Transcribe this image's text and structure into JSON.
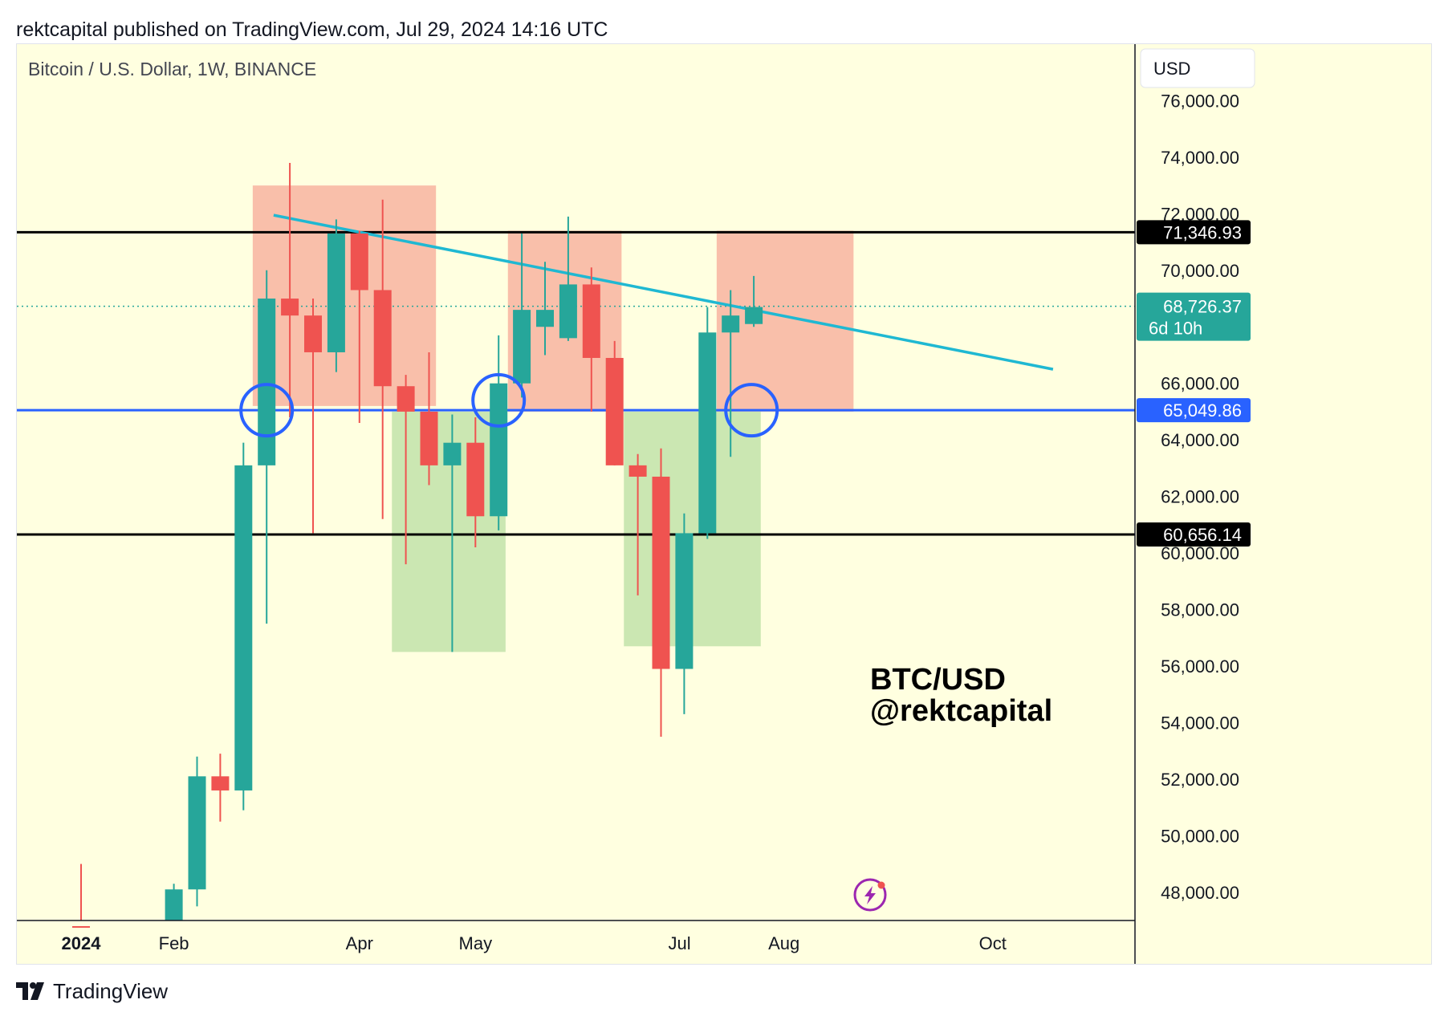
{
  "header": {
    "publish_line": "rektcapital published on TradingView.com, Jul 29, 2024 14:16 UTC"
  },
  "footer": {
    "brand": "TradingView",
    "logo_icon": "tradingview-logo-icon"
  },
  "colors": {
    "background": "#ffffe0",
    "up": "#26a69a",
    "down": "#ef5350",
    "resistance_zone": "#f8b8a4",
    "support_zone": "#c5e4ad",
    "trendline": "#1fb8d2",
    "support_line": "#2962ff",
    "level_line": "#000000",
    "circle": "#2962ff",
    "price_label": "#26a69a"
  },
  "chart_data": {
    "type": "candlestick",
    "symbol_title": "Bitcoin / U.S. Dollar, 1W, BINANCE",
    "currency_label": "USD",
    "watermark_lines": [
      "BTC/USD",
      "@rektcapital"
    ],
    "ylim": [
      47000,
      78000
    ],
    "y_ticks": [
      "76,000.00",
      "74,000.00",
      "72,000.00",
      "70,000.00",
      "66,000.00",
      "64,000.00",
      "62,000.00",
      "60,000.00",
      "58,000.00",
      "56,000.00",
      "54,000.00",
      "52,000.00",
      "50,000.00",
      "48,000.00"
    ],
    "y_tick_values": [
      76000,
      74000,
      72000,
      70000,
      66000,
      64000,
      62000,
      60000,
      58000,
      56000,
      54000,
      52000,
      50000,
      48000
    ],
    "x_labels": [
      {
        "label": "2024",
        "at": 0.0,
        "bold": true
      },
      {
        "label": "Feb",
        "at": 4.0,
        "bold": false
      },
      {
        "label": "Apr",
        "at": 12.0,
        "bold": false
      },
      {
        "label": "May",
        "at": 17.0,
        "bold": false
      },
      {
        "label": "Jul",
        "at": 25.8,
        "bold": false
      },
      {
        "label": "Aug",
        "at": 30.3,
        "bold": false
      },
      {
        "label": "Oct",
        "at": 39.3,
        "bold": false
      }
    ],
    "candles": [
      {
        "x": 0,
        "open": 46800,
        "high": 49000,
        "low": 46500,
        "close": 46700
      },
      {
        "x": 4,
        "open": 47000,
        "high": 48300,
        "low": 46800,
        "close": 48100
      },
      {
        "x": 5,
        "open": 48100,
        "high": 52800,
        "low": 47500,
        "close": 52100
      },
      {
        "x": 6,
        "open": 52100,
        "high": 52900,
        "low": 50500,
        "close": 51600
      },
      {
        "x": 7,
        "open": 51600,
        "high": 63900,
        "low": 50900,
        "close": 63100
      },
      {
        "x": 8,
        "open": 63100,
        "high": 70000,
        "low": 57500,
        "close": 69000
      },
      {
        "x": 9,
        "open": 69000,
        "high": 73800,
        "low": 64800,
        "close": 68400
      },
      {
        "x": 10,
        "open": 68400,
        "high": 69000,
        "low": 60700,
        "close": 67100
      },
      {
        "x": 11,
        "open": 67100,
        "high": 71800,
        "low": 66400,
        "close": 71300
      },
      {
        "x": 12,
        "open": 71300,
        "high": 71400,
        "low": 64600,
        "close": 69300
      },
      {
        "x": 13,
        "open": 69300,
        "high": 72500,
        "low": 61200,
        "close": 65900
      },
      {
        "x": 14,
        "open": 65900,
        "high": 66300,
        "low": 59600,
        "close": 65000
      },
      {
        "x": 15,
        "open": 65000,
        "high": 67100,
        "low": 62400,
        "close": 63100
      },
      {
        "x": 16,
        "open": 63100,
        "high": 64900,
        "low": 56500,
        "close": 63900
      },
      {
        "x": 17,
        "open": 63900,
        "high": 64800,
        "low": 60200,
        "close": 61300
      },
      {
        "x": 18,
        "open": 61300,
        "high": 67700,
        "low": 60800,
        "close": 66000
      },
      {
        "x": 19,
        "open": 66000,
        "high": 71300,
        "low": 65500,
        "close": 68600
      },
      {
        "x": 20,
        "open": 68000,
        "high": 70300,
        "low": 67000,
        "close": 68600
      },
      {
        "x": 21,
        "open": 67600,
        "high": 71900,
        "low": 67500,
        "close": 69500
      },
      {
        "x": 22,
        "open": 69500,
        "high": 70100,
        "low": 65000,
        "close": 66900
      },
      {
        "x": 23,
        "open": 66900,
        "high": 67500,
        "low": 63100,
        "close": 63100
      },
      {
        "x": 24,
        "open": 63100,
        "high": 63500,
        "low": 58500,
        "close": 62700
      },
      {
        "x": 25,
        "open": 62700,
        "high": 63700,
        "low": 53500,
        "close": 55900
      },
      {
        "x": 26,
        "open": 55900,
        "high": 61400,
        "low": 54300,
        "close": 60700
      },
      {
        "x": 27,
        "open": 60700,
        "high": 68700,
        "low": 60500,
        "close": 67800
      },
      {
        "x": 28,
        "open": 67800,
        "high": 69300,
        "low": 63400,
        "close": 68400
      },
      {
        "x": 29,
        "open": 68100,
        "high": 69800,
        "low": 68000,
        "close": 68700
      }
    ],
    "zones": [
      {
        "kind": "resistance",
        "x0": 7.4,
        "x1": 15.3,
        "y0": 65200,
        "y1": 73000
      },
      {
        "kind": "resistance",
        "x0": 18.4,
        "x1": 23.3,
        "y0": 65000,
        "y1": 71400
      },
      {
        "kind": "resistance",
        "x0": 27.4,
        "x1": 33.3,
        "y0": 65000,
        "y1": 71400
      },
      {
        "kind": "support",
        "x0": 13.4,
        "x1": 18.3,
        "y0": 56500,
        "y1": 65000
      },
      {
        "kind": "support",
        "x0": 23.4,
        "x1": 29.3,
        "y0": 56700,
        "y1": 65000
      }
    ],
    "trendline": {
      "x0": 8.3,
      "y0": 71950,
      "x1": 41.9,
      "y1": 66500
    },
    "levels": [
      {
        "value": 71346.93,
        "label": "71,346.93",
        "color": "#000000",
        "style": "solid"
      },
      {
        "value": 65049.86,
        "label": "65,049.86",
        "color": "#2962ff",
        "style": "solid"
      },
      {
        "value": 60656.14,
        "label": "60,656.14",
        "color": "#000000",
        "style": "solid"
      }
    ],
    "last_price": {
      "value": 68726.37,
      "label": "68,726.37",
      "countdown": "6d 10h"
    },
    "circles": [
      {
        "x": 8.0,
        "y": 65049.86
      },
      {
        "x": 18.0,
        "y": 65400
      },
      {
        "x": 28.9,
        "y": 65049.86
      }
    ],
    "grid": false,
    "legend": "none",
    "logo_icon": "lightning-bolt-icon"
  }
}
